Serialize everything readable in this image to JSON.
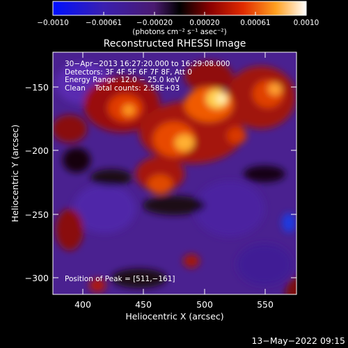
{
  "colorbar": {
    "tick_labels": [
      "−0.0010",
      "−0.00061",
      "−0.00020",
      "0.00020",
      "0.00061",
      "0.0010"
    ],
    "units": "(photons cm⁻² s⁻¹ asec⁻²)"
  },
  "title": "Reconstructed RHESSI Image",
  "annotations": {
    "time_range": "30−Apr−2013 16:27:20.000 to 16:29:08.000",
    "detectors": "Detectors: 3F 4F 5F 6F 7F 8F, Att 0",
    "energy_range": "Energy Range: 12.0 − 25.0 keV",
    "clean_counts": "Clean    Total counts: 2.58E+03",
    "peak_position": "Position of Peak = [511,−161]"
  },
  "axes": {
    "xlabel": "Heliocentric X (arcsec)",
    "ylabel": "Heliocentric Y (arcsec)",
    "x_ticks": [
      "400",
      "450",
      "500",
      "550"
    ],
    "y_ticks": [
      "−150",
      "−200",
      "−250",
      "−300"
    ]
  },
  "footer_timestamp": "13−May−2022 09:15"
}
